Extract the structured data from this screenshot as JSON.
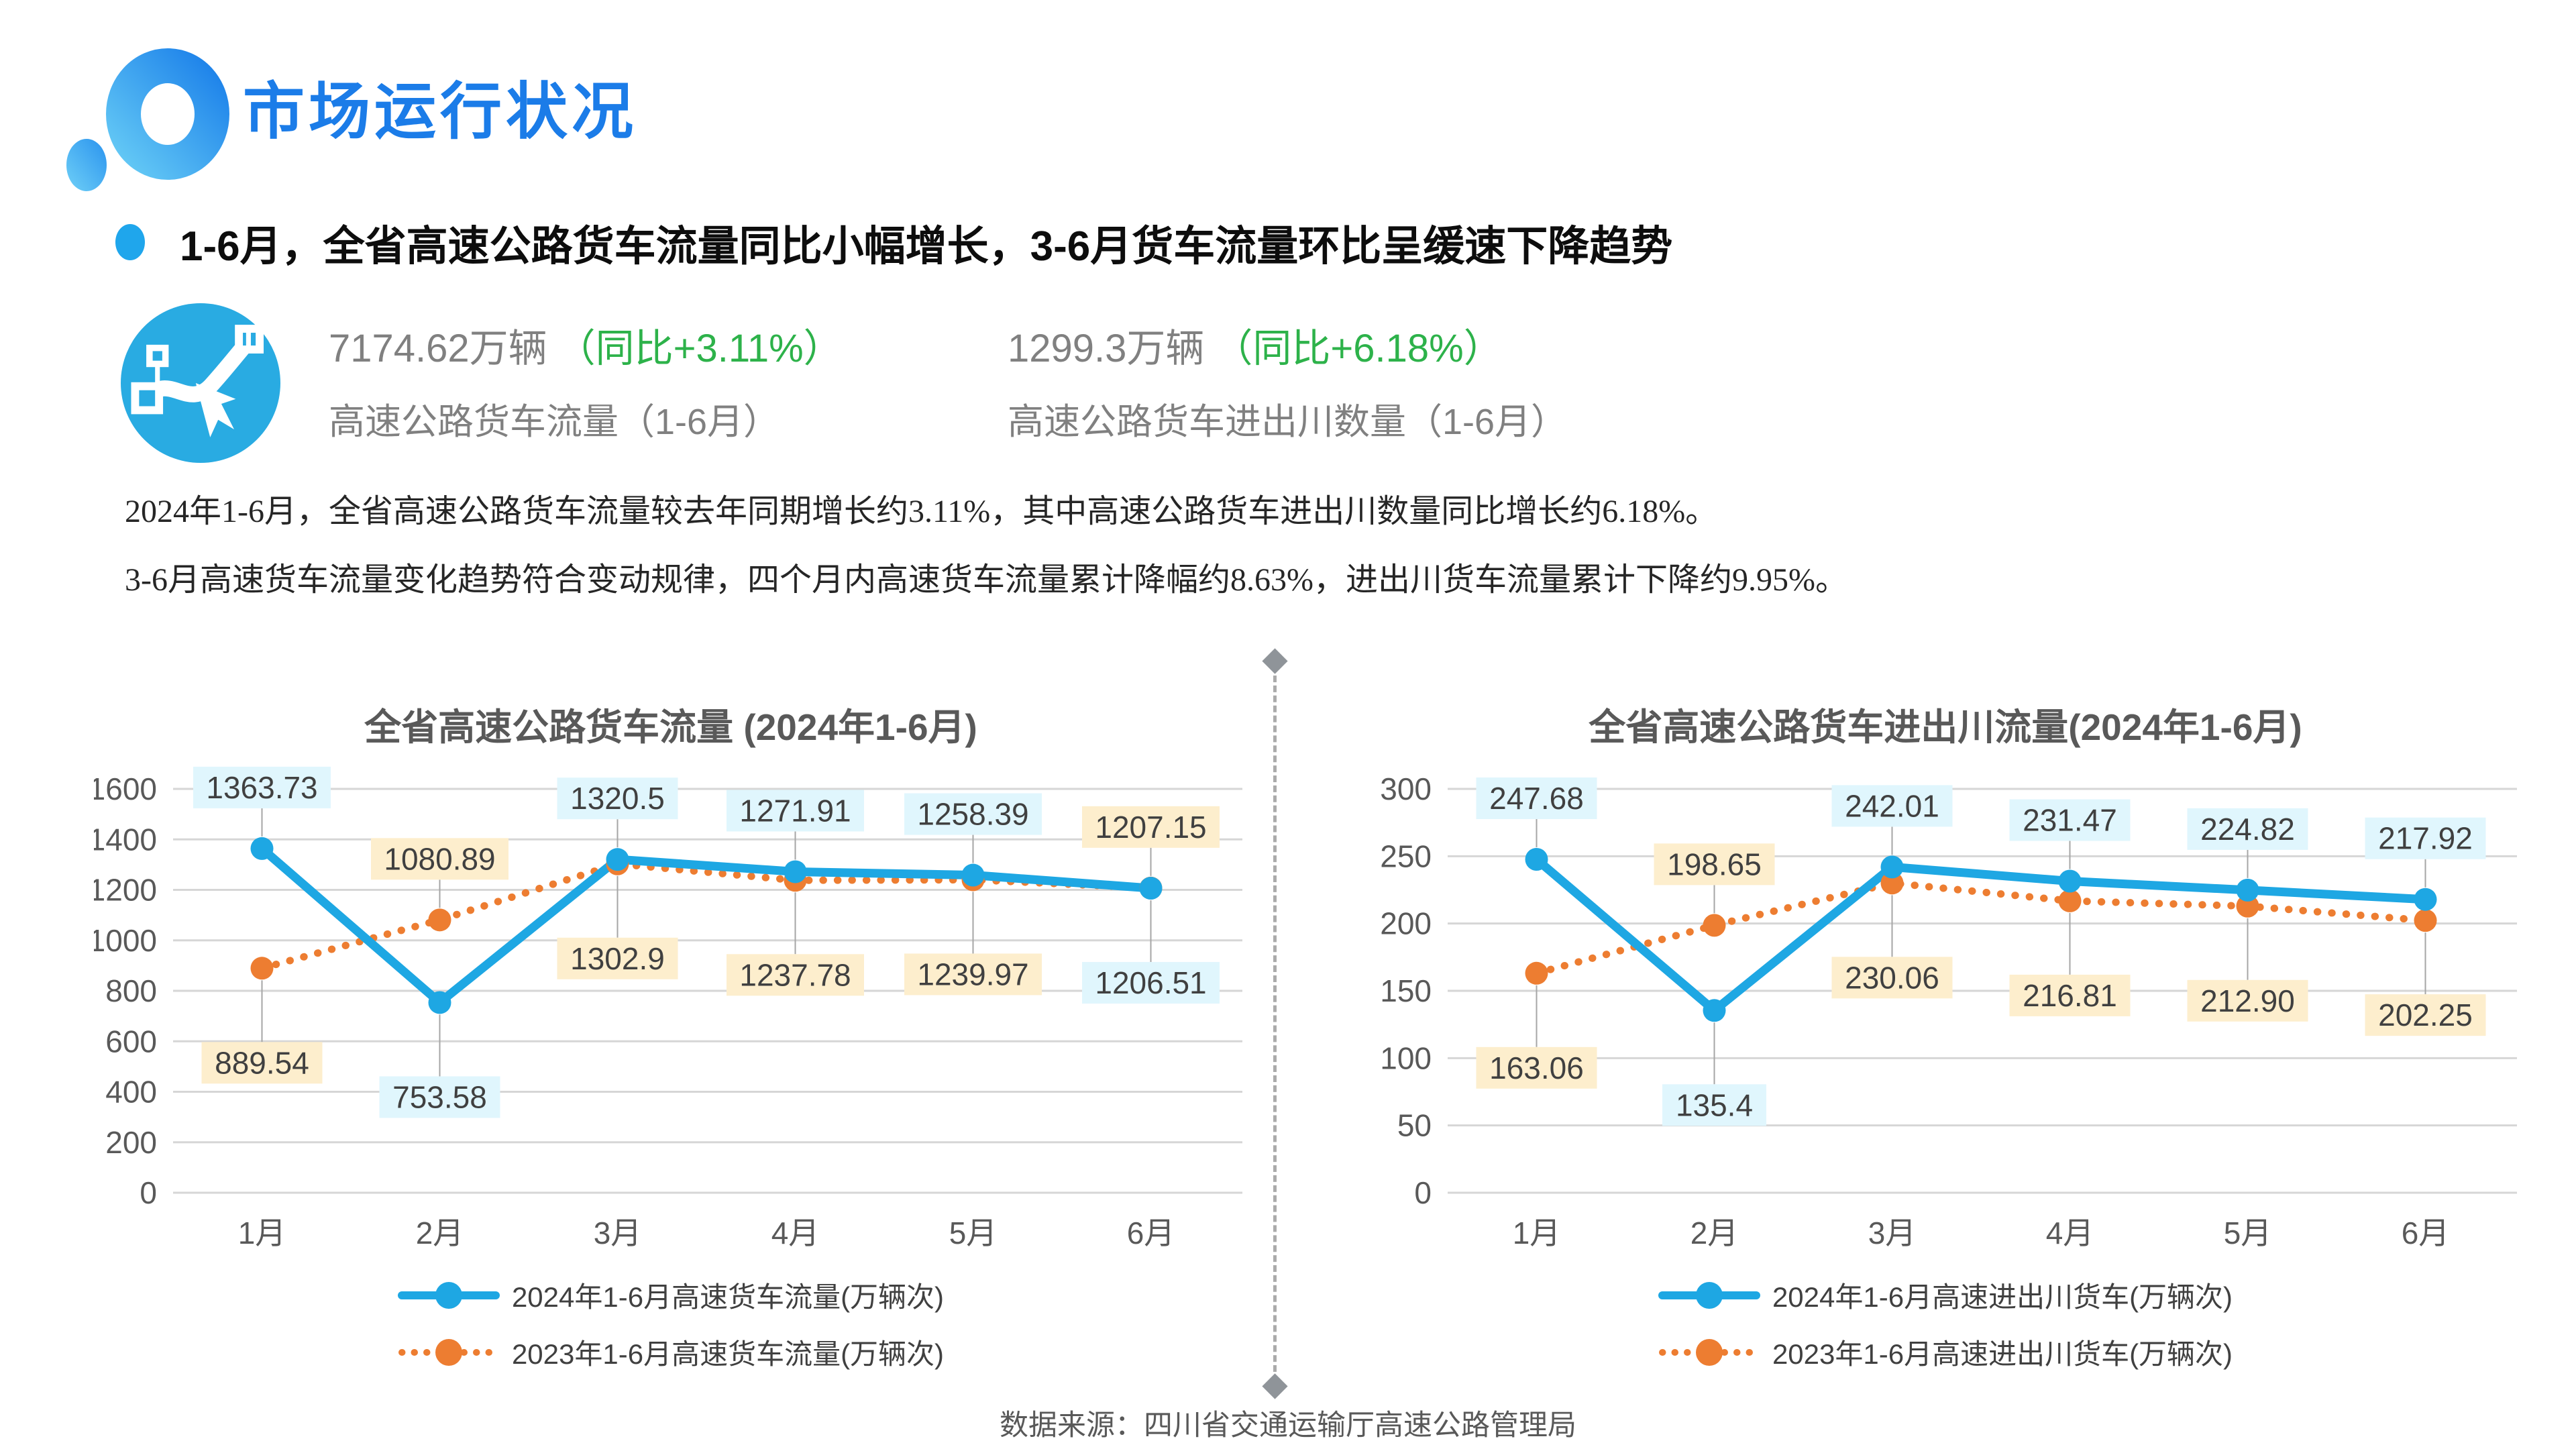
{
  "header": {
    "title": "市场运行状况"
  },
  "headline": {
    "text": "1-6月，全省高速公路货车流量同比小幅增长，3-6月货车流量环比呈缓速下降趋势"
  },
  "stats": [
    {
      "value": "7174.62万辆",
      "yoy": "（同比+3.11%）",
      "label": "高速公路货车流量（1-6月）"
    },
    {
      "value": "1299.3万辆",
      "yoy": "（同比+6.18%）",
      "label": "高速公路货车进出川数量（1-6月）"
    }
  ],
  "summary": {
    "line1": "2024年1-6月，全省高速公路货车流量较去年同期增长约3.11%，其中高速公路货车进出川数量同比增长约6.18%。",
    "line2": "3-6月高速货车流量变化趋势符合变动规律，四个月内高速货车流量累计降幅约8.63%，进出川货车流量累计下降约9.95%。"
  },
  "source": "数据来源：四川省交通运输厅高速公路管理局",
  "colors": {
    "accent_blue": "#1ea7e3",
    "accent_orange": "#ed7d31",
    "title_blue": "#1b7ce8",
    "green": "#2db24a",
    "stat_gray": "#808080",
    "chart_title_gray": "#595959",
    "label_bg_blue": "#e0f6fd",
    "label_bg_orange": "#fdeecd",
    "grid": "#d6d6d6"
  },
  "chart_data": [
    {
      "type": "line",
      "title": "全省高速公路货车流量 (2024年1-6月)",
      "categories": [
        "1月",
        "2月",
        "3月",
        "4月",
        "5月",
        "6月"
      ],
      "ylim": [
        0,
        1600
      ],
      "ytick_step": 200,
      "grid": true,
      "legend_position": "bottom",
      "series": [
        {
          "name": "2024年1-6月高速货车流量(万辆次)",
          "color": "#1ea7e3",
          "style": "solid",
          "label_bg": "#e0f6fd",
          "values": [
            1363.73,
            753.58,
            1320.5,
            1271.91,
            1258.39,
            1206.51
          ],
          "labels": [
            "1363.73",
            "753.58",
            "1320.5",
            "1271.91",
            "1258.39",
            "1206.51"
          ],
          "label_side": [
            "above",
            "below",
            "above",
            "above",
            "above",
            "below"
          ]
        },
        {
          "name": "2023年1-6月高速货车流量(万辆次)",
          "color": "#ed7d31",
          "style": "dotted",
          "label_bg": "#fdeecd",
          "values": [
            889.54,
            1080.89,
            1302.9,
            1237.78,
            1239.97,
            1207.15
          ],
          "labels": [
            "889.54",
            "1080.89",
            "1302.9",
            "1237.78",
            "1239.97",
            "1207.15"
          ],
          "label_side": [
            "below",
            "above",
            "below",
            "below",
            "below",
            "above"
          ]
        }
      ]
    },
    {
      "type": "line",
      "title": "全省高速公路货车进出川流量(2024年1-6月)",
      "categories": [
        "1月",
        "2月",
        "3月",
        "4月",
        "5月",
        "6月"
      ],
      "ylim": [
        0,
        300
      ],
      "ytick_step": 50,
      "grid": true,
      "legend_position": "bottom",
      "series": [
        {
          "name": "2024年1-6月高速进出川货车(万辆次)",
          "color": "#1ea7e3",
          "style": "solid",
          "label_bg": "#e0f6fd",
          "values": [
            247.68,
            135.4,
            242.01,
            231.47,
            224.82,
            217.92
          ],
          "labels": [
            "247.68",
            "135.4",
            "242.01",
            "231.47",
            "224.82",
            "217.92"
          ],
          "label_side": [
            "above",
            "below",
            "above",
            "above",
            "above",
            "above"
          ]
        },
        {
          "name": "2023年1-6月高速进出川货车(万辆次)",
          "color": "#ed7d31",
          "style": "dotted",
          "label_bg": "#fdeecd",
          "values": [
            163.06,
            198.65,
            230.06,
            216.81,
            212.9,
            202.25
          ],
          "labels": [
            "163.06",
            "198.65",
            "230.06",
            "216.81",
            "212.90",
            "202.25"
          ],
          "label_side": [
            "below",
            "above",
            "below",
            "below",
            "below",
            "below"
          ]
        }
      ]
    }
  ]
}
